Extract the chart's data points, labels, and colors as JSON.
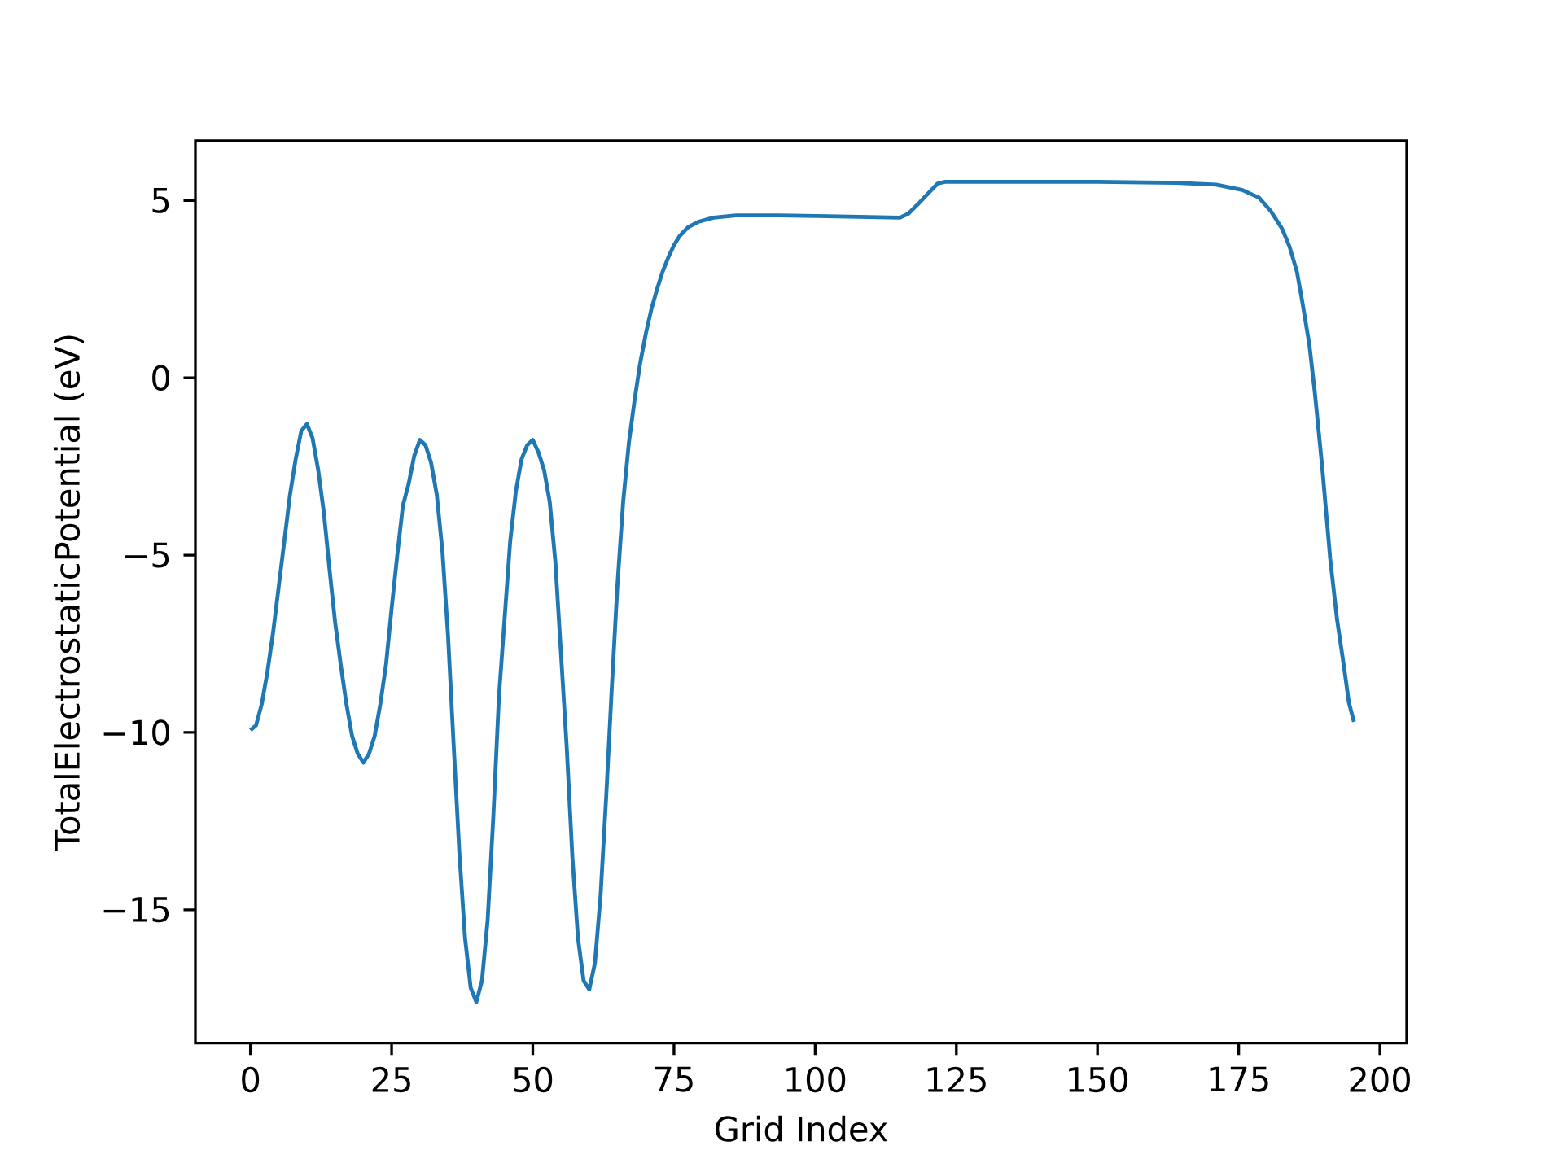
{
  "chart_data": {
    "type": "line",
    "xlabel": "Grid Index",
    "ylabel": "TotalElectrostaticPotential (eV)",
    "xlim": [
      -9.75,
      204.75
    ],
    "ylim": [
      -18.76,
      6.69
    ],
    "xticks": [
      0,
      25,
      50,
      75,
      100,
      125,
      150,
      175,
      200
    ],
    "yticks": [
      {
        "value": -15,
        "label": "−15"
      },
      {
        "value": -10,
        "label": "−10"
      },
      {
        "value": -5,
        "label": "−5"
      },
      0,
      5
    ],
    "series": [
      {
        "color": "#1f77b4",
        "x": [
          0,
          1,
          2,
          3,
          4,
          5,
          6,
          7,
          8,
          9,
          10,
          11,
          12,
          13,
          14,
          15,
          16,
          17,
          18,
          19,
          20,
          21,
          22,
          23,
          24,
          25,
          26,
          27,
          28,
          29,
          30,
          31,
          32,
          33,
          34,
          35,
          36,
          37,
          38,
          39,
          40,
          41,
          42,
          43,
          44,
          45,
          46,
          47,
          48,
          49,
          50,
          51,
          52,
          53,
          54,
          55,
          56,
          57,
          58,
          59,
          60,
          61,
          62,
          63,
          64,
          65,
          66,
          67,
          68,
          69,
          70,
          71,
          72,
          73,
          74,
          75,
          76,
          77.5,
          79.3,
          82,
          86,
          93.5,
          106,
          115,
          116.5,
          118.2,
          120,
          121.7,
          123,
          132,
          150,
          164,
          171,
          175.6,
          178.6,
          180.7,
          182.7,
          184,
          185.3,
          186.2,
          187.5,
          188.5,
          189.8,
          191.2,
          192.4,
          193.6,
          194.5,
          195.4
        ],
        "values": [
          -9.94,
          -9.8,
          -9.2,
          -8.3,
          -7.2,
          -5.9,
          -4.6,
          -3.3,
          -2.3,
          -1.5,
          -1.3,
          -1.7,
          -2.6,
          -3.8,
          -5.4,
          -6.9,
          -8.1,
          -9.2,
          -10.1,
          -10.6,
          -10.85,
          -10.6,
          -10.1,
          -9.2,
          -8.1,
          -6.5,
          -5.0,
          -3.6,
          -3.0,
          -2.2,
          -1.75,
          -1.9,
          -2.4,
          -3.3,
          -4.9,
          -7.3,
          -10.4,
          -13.4,
          -15.8,
          -17.2,
          -17.6,
          -17.0,
          -15.3,
          -12.4,
          -9.0,
          -6.8,
          -4.6,
          -3.2,
          -2.3,
          -1.9,
          -1.75,
          -2.1,
          -2.6,
          -3.5,
          -5.2,
          -7.8,
          -10.4,
          -13.5,
          -15.8,
          -17.0,
          -17.25,
          -16.5,
          -14.6,
          -11.8,
          -8.7,
          -5.8,
          -3.5,
          -1.85,
          -0.65,
          0.4,
          1.24,
          1.94,
          2.5,
          3.0,
          3.4,
          3.74,
          4.0,
          4.25,
          4.4,
          4.52,
          4.58,
          4.58,
          4.55,
          4.52,
          4.63,
          4.9,
          5.2,
          5.48,
          5.53,
          5.53,
          5.53,
          5.5,
          5.45,
          5.3,
          5.08,
          4.7,
          4.2,
          3.7,
          3.0,
          2.2,
          0.95,
          -0.45,
          -2.55,
          -5.1,
          -6.8,
          -8.1,
          -9.15,
          -9.7
        ]
      }
    ]
  }
}
